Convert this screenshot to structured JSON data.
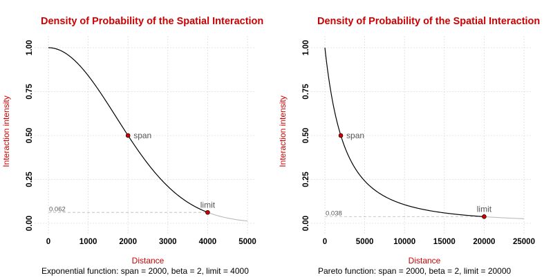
{
  "colors": {
    "title": "#cc0000",
    "axis_label": "#cc0000",
    "curve": "#000000",
    "curve_tail": "#bbbbbb",
    "point": "#cc0000",
    "grid": "#dddddd",
    "reference_line": "#c0c0c0"
  },
  "chart_data": [
    {
      "type": "line",
      "title": "Density of Probability of the Spatial Interaction",
      "xlabel": "Distance",
      "ylabel": "Interaction intensity",
      "caption": "Exponential function: span = 2000, beta = 2, limit = 4000",
      "function": "exponential",
      "span": 2000,
      "beta": 2,
      "limit": 4000,
      "xlim": [
        0,
        5000
      ],
      "ylim": [
        0,
        1
      ],
      "x_ticks": [
        "0",
        "1000",
        "2000",
        "3000",
        "4000",
        "5000"
      ],
      "y_ticks": [
        "0.00",
        "0.25",
        "0.50",
        "0.75",
        "1.00"
      ],
      "grid": true,
      "points": [
        {
          "label": "span",
          "x": 2000,
          "y": 0.5
        },
        {
          "label": "limit",
          "x": 4000,
          "y": 0.062
        }
      ],
      "reference": {
        "label": "0.062",
        "y": 0.062
      }
    },
    {
      "type": "line",
      "title": "Density of Probability of the Spatial Interaction",
      "xlabel": "Distance",
      "ylabel": "Interaction intensity",
      "caption": "Pareto function: span = 2000, beta = 2, limit = 20000",
      "function": "pareto",
      "span": 2000,
      "beta": 2,
      "limit": 20000,
      "xlim": [
        0,
        25000
      ],
      "ylim": [
        0,
        1
      ],
      "x_ticks": [
        "0",
        "5000",
        "10000",
        "15000",
        "20000",
        "25000"
      ],
      "y_ticks": [
        "0.00",
        "0.25",
        "0.50",
        "0.75",
        "1.00"
      ],
      "grid": true,
      "points": [
        {
          "label": "span",
          "x": 2000,
          "y": 0.5
        },
        {
          "label": "limit",
          "x": 20000,
          "y": 0.038
        }
      ],
      "reference": {
        "label": "0.038",
        "y": 0.038
      }
    }
  ]
}
